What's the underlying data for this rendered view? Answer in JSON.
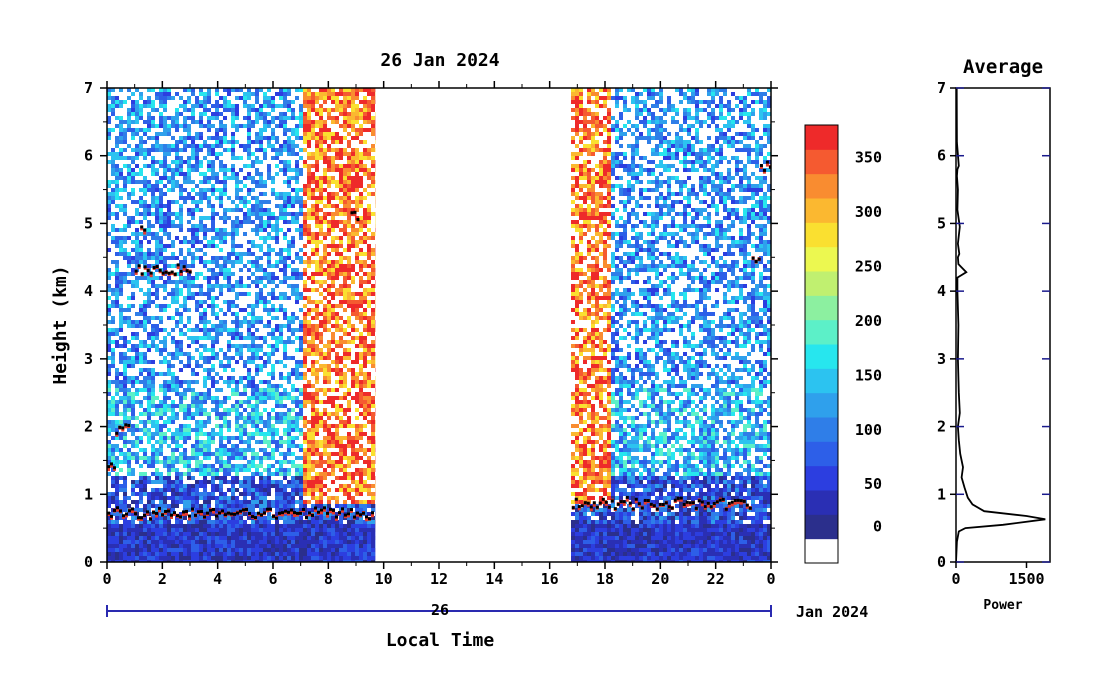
{
  "chart_data": [
    {
      "type": "heatmap",
      "title": "26 Jan 2024",
      "xlabel": "Local Time",
      "ylabel": "Height (km)",
      "xlim": [
        0,
        24
      ],
      "ylim": [
        0,
        7
      ],
      "x_ticks": [
        "0",
        "2",
        "4",
        "6",
        "8",
        "10",
        "12",
        "14",
        "16",
        "18",
        "20",
        "22",
        "0"
      ],
      "y_ticks": [
        "0",
        "1",
        "2",
        "3",
        "4",
        "5",
        "6",
        "7"
      ],
      "date_axis_label": "26",
      "date_axis_suffix": "Jan 2024",
      "data_gap": [
        9.7,
        16.7
      ],
      "colorbar": {
        "ticks": [
          "0",
          "50",
          "100",
          "150",
          "200",
          "250",
          "300",
          "350"
        ],
        "range": [
          0,
          380
        ],
        "colors": [
          "#ffffff",
          "#2b2f8c",
          "#2a2fb4",
          "#2c3ee0",
          "#2d5fe8",
          "#2f7ee8",
          "#2fa0ec",
          "#2cc3f0",
          "#27e6ee",
          "#5cf0c8",
          "#8cf0a0",
          "#c0f070",
          "#ecf850",
          "#fae030",
          "#fbb830",
          "#f98c30",
          "#f55a30",
          "#ee2a2a"
        ]
      },
      "cloud_layers": [
        {
          "t_start": 0.0,
          "t_end": 9.6,
          "height_km": 0.7
        },
        {
          "t_start": 16.8,
          "t_end": 23.2,
          "height_km": 0.85
        },
        {
          "t_start": 1.0,
          "t_end": 3.0,
          "height_km": 4.3
        },
        {
          "t_start": 1.2,
          "t_end": 1.4,
          "height_km": 4.9
        },
        {
          "t_start": 8.8,
          "t_end": 9.1,
          "height_km": 5.1
        },
        {
          "t_start": 0.0,
          "t_end": 0.3,
          "height_km": 1.4
        },
        {
          "t_start": 0.3,
          "t_end": 0.8,
          "height_km": 1.95
        },
        {
          "t_start": 23.6,
          "t_end": 24.0,
          "height_km": 5.8
        },
        {
          "t_start": 23.3,
          "t_end": 23.6,
          "height_km": 4.5
        }
      ]
    },
    {
      "type": "line",
      "title": "Average",
      "xlabel": "Power",
      "ylabel": "",
      "xlim": [
        0,
        2000
      ],
      "ylim": [
        0,
        7
      ],
      "x_ticks": [
        "0",
        "1500"
      ],
      "y_ticks": [
        "0",
        "1",
        "2",
        "3",
        "4",
        "5",
        "6",
        "7"
      ],
      "series": [
        {
          "x": [
            0,
            20,
            60,
            200,
            1000,
            1900,
            1500,
            600,
            350,
            250,
            180,
            120,
            150,
            90,
            60,
            40,
            80,
            60,
            40,
            50,
            30,
            30,
            220,
            50,
            40,
            70,
            40,
            80,
            30,
            40,
            20,
            30,
            60,
            20,
            15
          ],
          "y": [
            0,
            0.3,
            0.45,
            0.5,
            0.55,
            0.63,
            0.68,
            0.75,
            0.85,
            0.95,
            1.1,
            1.25,
            1.4,
            1.6,
            1.8,
            2.0,
            2.2,
            2.5,
            3.0,
            3.5,
            4.0,
            4.2,
            4.28,
            4.4,
            4.5,
            4.55,
            4.7,
            4.95,
            5.2,
            5.5,
            5.7,
            5.8,
            5.85,
            6.2,
            7.0
          ]
        }
      ]
    }
  ]
}
